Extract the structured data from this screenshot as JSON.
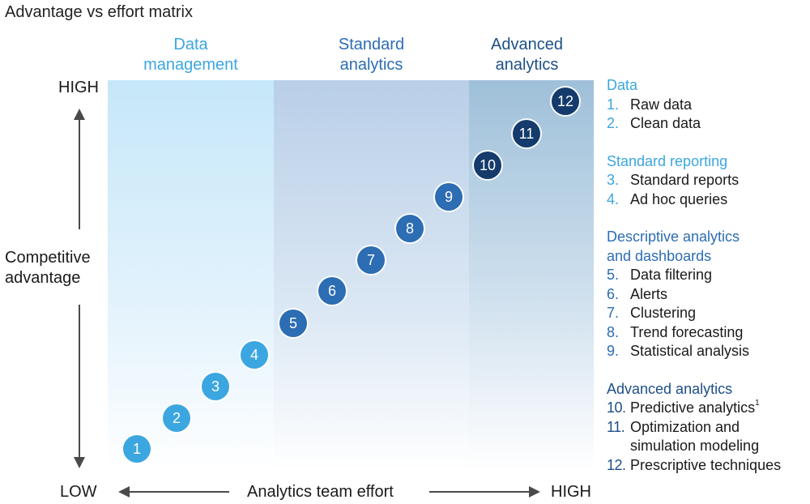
{
  "title": "Advantage vs effort matrix",
  "columns": [
    {
      "label": "Data\nmanagement"
    },
    {
      "label": "Standard\nanalytics"
    },
    {
      "label": "Advanced\nanalytics"
    }
  ],
  "y_axis": {
    "high": "HIGH",
    "label": "Competitive\nadvantage"
  },
  "x_axis": {
    "low": "LOW",
    "label": "Analytics team effort",
    "high": "HIGH"
  },
  "colors": {
    "light_blue": "#3ba6e0",
    "mid_blue": "#2c6db3",
    "dark_blue": "#1d4f86",
    "navy": "#143b6b"
  },
  "dots": [
    {
      "n": "1"
    },
    {
      "n": "2"
    },
    {
      "n": "3"
    },
    {
      "n": "4"
    },
    {
      "n": "5"
    },
    {
      "n": "6"
    },
    {
      "n": "7"
    },
    {
      "n": "8"
    },
    {
      "n": "9"
    },
    {
      "n": "10"
    },
    {
      "n": "11"
    },
    {
      "n": "12"
    }
  ],
  "legend": {
    "groups": [
      {
        "heading": "Data",
        "items": [
          {
            "num": "1.",
            "text": "Raw data"
          },
          {
            "num": "2.",
            "text": "Clean data"
          }
        ]
      },
      {
        "heading": "Standard reporting",
        "items": [
          {
            "num": "3.",
            "text": "Standard reports"
          },
          {
            "num": "4.",
            "text": "Ad hoc queries"
          }
        ]
      },
      {
        "heading": "Descriptive analytics\nand dashboards",
        "items": [
          {
            "num": "5.",
            "text": "Data filtering"
          },
          {
            "num": "6.",
            "text": "Alerts"
          },
          {
            "num": "7.",
            "text": "Clustering"
          },
          {
            "num": "8.",
            "text": "Trend forecasting"
          },
          {
            "num": "9.",
            "text": "Statistical analysis"
          }
        ]
      },
      {
        "heading": "Advanced analytics",
        "items": [
          {
            "num": "10.",
            "text": "Predictive analytics",
            "sup": "1"
          },
          {
            "num": "11.",
            "text": "Optimization and\nsimulation modeling"
          },
          {
            "num": "12.",
            "text": "Prescriptive techniques"
          }
        ]
      }
    ]
  }
}
